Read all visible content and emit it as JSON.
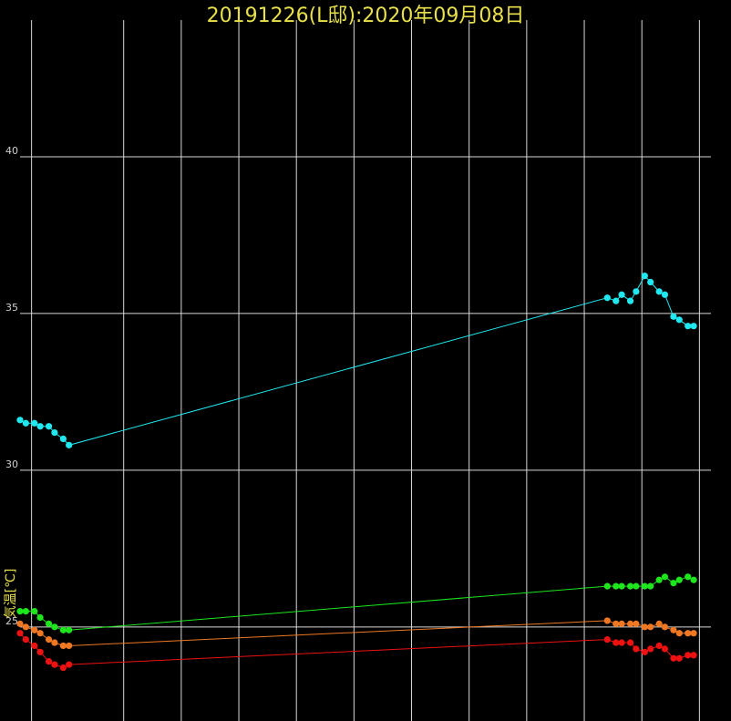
{
  "chart_data": {
    "type": "line",
    "title": "20191226(L邸):2020年09月08日",
    "ylabel": "気温[℃]",
    "xlabel": "",
    "ylim": [
      22,
      45
    ],
    "yticks": [
      25,
      30,
      35,
      40
    ],
    "xlim": [
      0,
      24
    ],
    "vgrid": [
      0.4,
      3.6,
      5.6,
      7.6,
      9.6,
      11.6,
      13.6,
      15.6,
      17.6,
      19.6,
      21.6,
      23.6
    ],
    "grid": true,
    "series": [
      {
        "color": "#1fe8f0",
        "x": [
          0,
          0.2,
          0.5,
          0.7,
          1,
          1.2,
          1.5,
          1.7,
          20.4,
          20.7,
          20.9,
          21.2,
          21.4,
          21.7,
          21.9,
          22.2,
          22.4,
          22.7,
          22.9,
          23.2,
          23.4
        ],
        "y": [
          31.6,
          31.5,
          31.5,
          31.4,
          31.4,
          31.2,
          31.0,
          30.8,
          35.5,
          35.4,
          35.6,
          35.4,
          35.7,
          36.2,
          36.0,
          35.7,
          35.6,
          34.9,
          34.8,
          34.6,
          34.6
        ]
      },
      {
        "color": "#1de61d",
        "x": [
          0,
          0.2,
          0.5,
          0.7,
          1,
          1.2,
          1.5,
          1.7,
          20.4,
          20.7,
          20.9,
          21.2,
          21.4,
          21.7,
          21.9,
          22.2,
          22.4,
          22.7,
          22.9,
          23.2,
          23.4
        ],
        "y": [
          25.5,
          25.5,
          25.5,
          25.3,
          25.1,
          25.0,
          24.9,
          24.9,
          26.3,
          26.3,
          26.3,
          26.3,
          26.3,
          26.3,
          26.3,
          26.5,
          26.6,
          26.4,
          26.5,
          26.6,
          26.5
        ]
      },
      {
        "color": "#f07822",
        "x": [
          0,
          0.2,
          0.5,
          0.7,
          1,
          1.2,
          1.5,
          1.7,
          20.4,
          20.7,
          20.9,
          21.2,
          21.4,
          21.7,
          21.9,
          22.2,
          22.4,
          22.7,
          22.9,
          23.2,
          23.4
        ],
        "y": [
          25.1,
          25.0,
          24.9,
          24.8,
          24.6,
          24.5,
          24.4,
          24.4,
          25.2,
          25.1,
          25.1,
          25.1,
          25.1,
          25.0,
          25.0,
          25.1,
          25.0,
          24.9,
          24.8,
          24.8,
          24.8
        ]
      },
      {
        "color": "#ee1111",
        "x": [
          0,
          0.2,
          0.5,
          0.7,
          1,
          1.2,
          1.5,
          1.7,
          20.4,
          20.7,
          20.9,
          21.2,
          21.4,
          21.7,
          21.9,
          22.2,
          22.4,
          22.7,
          22.9,
          23.2,
          23.4
        ],
        "y": [
          24.8,
          24.6,
          24.4,
          24.2,
          23.9,
          23.8,
          23.7,
          23.8,
          24.6,
          24.5,
          24.5,
          24.5,
          24.3,
          24.2,
          24.3,
          24.4,
          24.3,
          24.0,
          24.0,
          24.1,
          24.1
        ]
      }
    ]
  }
}
